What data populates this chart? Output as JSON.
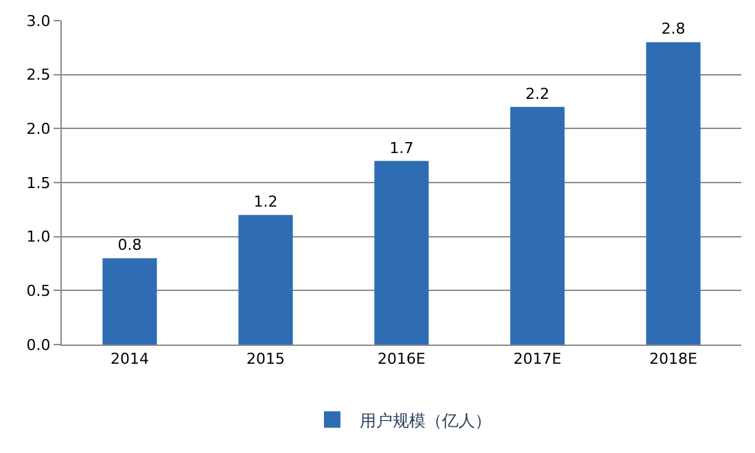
{
  "chart_data": {
    "type": "bar",
    "categories": [
      "2014",
      "2015",
      "2016E",
      "2017E",
      "2018E"
    ],
    "series": [
      {
        "name": "用户规模（亿人）",
        "color": "#2e6db4",
        "values": [
          0.8,
          1.2,
          1.7,
          2.2,
          2.8
        ]
      }
    ],
    "ylim": [
      0,
      3
    ],
    "yticks": [
      {
        "value": 0,
        "label": "0.0"
      },
      {
        "value": 0.5,
        "label": "0.5"
      },
      {
        "value": 1,
        "label": "1.0"
      },
      {
        "value": 1.5,
        "label": "1.5"
      },
      {
        "value": 2,
        "label": "2.0"
      },
      {
        "value": 2.5,
        "label": "2.5"
      },
      {
        "value": 3,
        "label": "3.0"
      }
    ],
    "grid": "y",
    "legend": "bottom",
    "data_labels": true
  }
}
